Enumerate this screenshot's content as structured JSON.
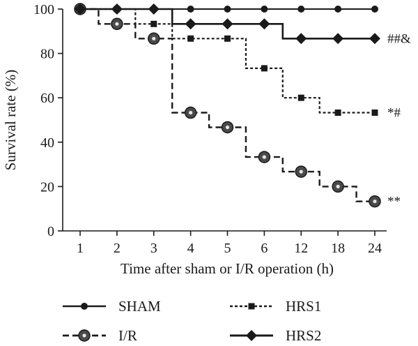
{
  "chart_data": {
    "type": "line",
    "step": true,
    "xlabel": "Time after sham or I/R operation (h)",
    "ylabel": "Survival rate (%)",
    "categories": [
      "1",
      "2",
      "3",
      "4",
      "5",
      "6",
      "12",
      "18",
      "24"
    ],
    "ylim": [
      0,
      100
    ],
    "yticks": [
      0,
      20,
      40,
      60,
      80,
      100
    ],
    "grid": false,
    "legend_position": "bottom",
    "series": [
      {
        "name": "SHAM",
        "values": [
          100,
          100,
          100,
          100,
          100,
          100,
          100,
          100,
          100
        ],
        "marker": "circle",
        "line": "solid",
        "color": "#1a1a1a",
        "annotation": ""
      },
      {
        "name": "I/R",
        "values": [
          100,
          93.3,
          86.7,
          53.3,
          46.7,
          33.3,
          26.7,
          20,
          13.3
        ],
        "marker": "ringed-circle",
        "line": "dashed",
        "color": "#1a1a1a",
        "annotation": "**"
      },
      {
        "name": "HRS1",
        "values": [
          100,
          100,
          93.3,
          86.7,
          86.7,
          73.3,
          60,
          53.3,
          53.3
        ],
        "marker": "square",
        "line": "dotted",
        "color": "#1a1a1a",
        "annotation": "*#"
      },
      {
        "name": "HRS2",
        "values": [
          100,
          100,
          100,
          93.3,
          93.3,
          93.3,
          86.7,
          86.7,
          86.7
        ],
        "marker": "diamond",
        "line": "solid-thick",
        "color": "#1a1a1a",
        "annotation": "##&"
      }
    ]
  }
}
